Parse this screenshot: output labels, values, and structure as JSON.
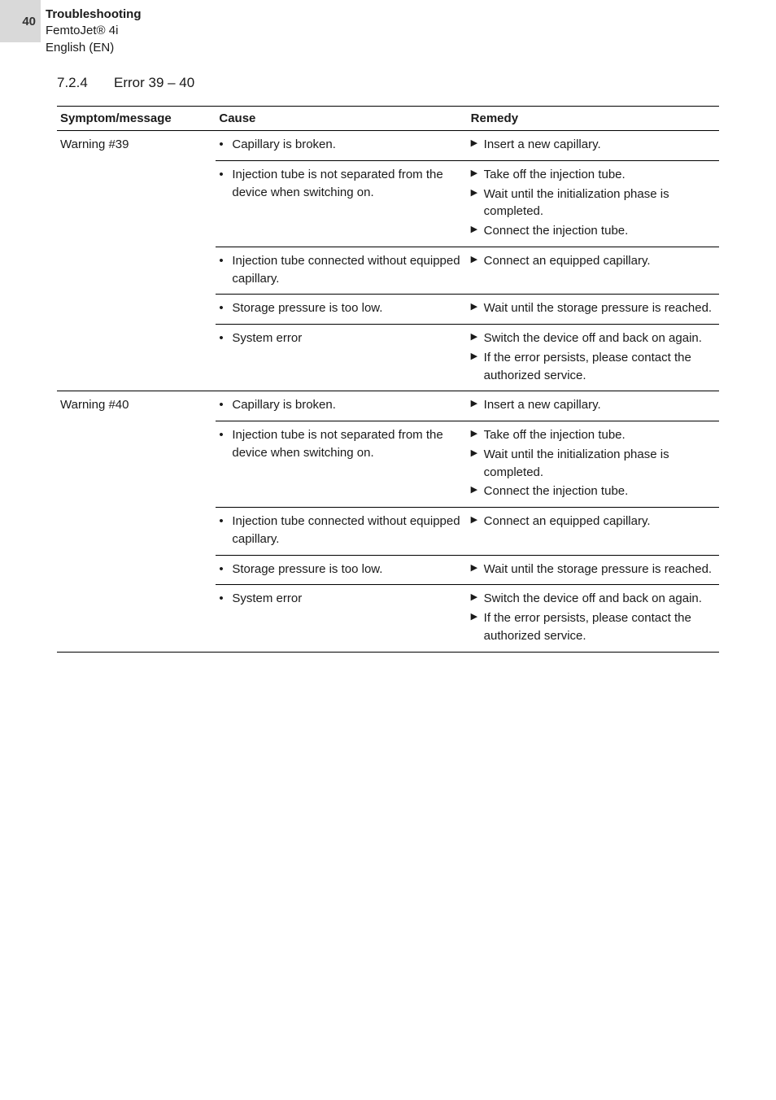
{
  "header": {
    "page_number": "40",
    "title": "Troubleshooting",
    "product": "FemtoJet® 4i",
    "lang": "English (EN)"
  },
  "section": {
    "number": "7.2.4",
    "title": "Error 39 – 40"
  },
  "table": {
    "headers": {
      "symptom": "Symptom/message",
      "cause": "Cause",
      "remedy": "Remedy"
    },
    "groups": [
      {
        "symptom": "Warning #39",
        "rows": [
          {
            "cause": [
              "Capillary is broken."
            ],
            "remedy": [
              "Insert a new capillary."
            ]
          },
          {
            "cause": [
              "Injection tube is not separated from the device when switching on."
            ],
            "remedy": [
              "Take off the injection tube.",
              "Wait until the initialization phase is completed.",
              "Connect the injection tube."
            ]
          },
          {
            "cause": [
              "Injection tube connected without equipped capillary."
            ],
            "remedy": [
              "Connect an equipped capillary."
            ]
          },
          {
            "cause": [
              "Storage pressure is too low."
            ],
            "remedy": [
              "Wait until the storage pressure is reached."
            ]
          },
          {
            "cause": [
              "System error"
            ],
            "remedy": [
              "Switch the device off and back on again.",
              "If the error persists, please contact the authorized service."
            ]
          }
        ]
      },
      {
        "symptom": "Warning #40",
        "rows": [
          {
            "cause": [
              "Capillary is broken."
            ],
            "remedy": [
              "Insert a new capillary."
            ]
          },
          {
            "cause": [
              "Injection tube is not separated from the device when switching on."
            ],
            "remedy": [
              "Take off the injection tube.",
              "Wait until the initialization phase is completed.",
              "Connect the injection tube."
            ]
          },
          {
            "cause": [
              "Injection tube connected without equipped capillary."
            ],
            "remedy": [
              "Connect an equipped capillary."
            ]
          },
          {
            "cause": [
              "Storage pressure is too low."
            ],
            "remedy": [
              "Wait until the storage pressure is reached."
            ]
          },
          {
            "cause": [
              "System error"
            ],
            "remedy": [
              "Switch the device off and back on again.",
              "If the error persists, please contact the authorized service."
            ]
          }
        ]
      }
    ]
  }
}
